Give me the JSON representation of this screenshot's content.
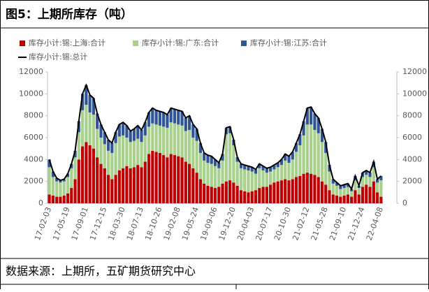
{
  "header": {
    "title": "图5：上期所库存（吨）"
  },
  "chart_data": {
    "type": "stacked-bar-line",
    "categories": [
      "17-02-03",
      null,
      null,
      null,
      null,
      "17-05-19",
      null,
      null,
      null,
      null,
      "17-09-01",
      null,
      null,
      null,
      null,
      "17-12-15",
      null,
      null,
      null,
      null,
      "18-03-30",
      null,
      null,
      null,
      null,
      "18-07-13",
      null,
      null,
      null,
      null,
      "18-10-26",
      null,
      null,
      null,
      null,
      "19-02-08",
      null,
      null,
      null,
      null,
      "19-05-24",
      null,
      null,
      null,
      null,
      "19-09-06",
      null,
      null,
      null,
      null,
      "19-12-20",
      null,
      null,
      null,
      null,
      "20-04-03",
      null,
      null,
      null,
      null,
      "20-07-17",
      null,
      null,
      null,
      null,
      "20-10-30",
      null,
      null,
      null,
      null,
      "21-02-12",
      null,
      null,
      null,
      null,
      "21-05-28",
      null,
      null,
      null,
      null,
      "21-09-10",
      null,
      null,
      null,
      null,
      "21-12-24",
      null,
      null,
      null,
      null,
      "22-04-08"
    ],
    "series": [
      {
        "name": "库存小计:锡:上海:合计",
        "color": "#c00000",
        "kind": "bar",
        "values": [
          800,
          700,
          600,
          600,
          700,
          900,
          1400,
          2200,
          4000,
          5200,
          5600,
          5300,
          5000,
          4200,
          3600,
          3200,
          2600,
          2200,
          2600,
          3000,
          3200,
          3400,
          3200,
          3300,
          3500,
          3300,
          3800,
          4500,
          4800,
          4700,
          4600,
          4400,
          4200,
          4500,
          4400,
          4300,
          4200,
          3800,
          3600,
          3200,
          2800,
          2200,
          1800,
          1600,
          1500,
          1400,
          1500,
          1800,
          2000,
          2100,
          1900,
          1600,
          1200,
          1100,
          1000,
          1100,
          1200,
          1400,
          1500,
          1500,
          1700,
          1900,
          2000,
          2100,
          2200,
          2100,
          2200,
          2400,
          2500,
          2700,
          2800,
          2700,
          2600,
          2400,
          2000,
          1700,
          1200,
          800,
          700,
          600,
          700,
          800,
          600,
          1200,
          800,
          1500,
          1700,
          1500,
          2000,
          1000,
          600
        ]
      },
      {
        "name": "库存小计:锡:广东:合计",
        "color": "#a9d18e",
        "kind": "bar",
        "values": [
          2500,
          1700,
          1400,
          1300,
          1300,
          1500,
          1800,
          2000,
          2500,
          3300,
          3400,
          3000,
          3100,
          2600,
          2400,
          2200,
          2200,
          2400,
          2900,
          3100,
          3000,
          2600,
          2400,
          2400,
          2400,
          2300,
          2400,
          2500,
          2500,
          2500,
          2500,
          2600,
          2700,
          2900,
          2900,
          2900,
          2900,
          2800,
          3100,
          2800,
          2900,
          2400,
          2100,
          2100,
          2100,
          2000,
          1700,
          2100,
          4300,
          4300,
          3400,
          2200,
          2000,
          2000,
          2000,
          1800,
          1500,
          1800,
          1500,
          1300,
          1200,
          1200,
          1300,
          1400,
          1700,
          1600,
          1800,
          2300,
          2800,
          3500,
          4400,
          4500,
          4100,
          4000,
          3600,
          2900,
          1700,
          1000,
          900,
          700,
          700,
          700,
          500,
          900,
          600,
          900,
          900,
          900,
          1300,
          900,
          1500
        ]
      },
      {
        "name": "库存小计:锡:江苏:合计",
        "color": "#2f5597",
        "kind": "bar",
        "values": [
          700,
          500,
          300,
          200,
          200,
          300,
          400,
          600,
          1000,
          1500,
          1800,
          1600,
          1500,
          1400,
          1200,
          1100,
          1000,
          900,
          1000,
          1100,
          1200,
          1100,
          1000,
          1100,
          1200,
          1100,
          1200,
          1300,
          1400,
          1300,
          1300,
          1300,
          1200,
          1300,
          1300,
          1300,
          1300,
          1200,
          1300,
          1200,
          1100,
          900,
          700,
          700,
          700,
          600,
          500,
          600,
          600,
          600,
          500,
          400,
          400,
          400,
          400,
          400,
          400,
          400,
          400,
          400,
          400,
          400,
          400,
          500,
          600,
          600,
          700,
          800,
          1000,
          1300,
          1500,
          1600,
          1500,
          1400,
          1200,
          1000,
          600,
          400,
          300,
          300,
          300,
          300,
          200,
          400,
          200,
          400,
          400,
          400,
          500,
          300,
          400
        ]
      },
      {
        "name": "库存小计:锡:总计",
        "color": "#000000",
        "kind": "line",
        "values": [
          4000,
          2900,
          2300,
          2100,
          2200,
          2700,
          3600,
          4800,
          7500,
          10000,
          10800,
          9900,
          9600,
          8200,
          7200,
          6500,
          5800,
          5500,
          6500,
          7200,
          7400,
          7100,
          6600,
          6800,
          7100,
          6700,
          7400,
          8300,
          8700,
          8500,
          8400,
          8300,
          8100,
          8700,
          8600,
          8500,
          8400,
          7800,
          8000,
          7200,
          6800,
          5500,
          4600,
          4400,
          4300,
          4000,
          3700,
          4500,
          6900,
          7000,
          5800,
          4200,
          3600,
          3500,
          3400,
          3300,
          3100,
          3600,
          3400,
          3200,
          3300,
          3500,
          3700,
          4000,
          4500,
          4300,
          4700,
          5500,
          6300,
          7500,
          8700,
          8800,
          8200,
          7800,
          6800,
          5600,
          3500,
          2200,
          1900,
          1600,
          1700,
          1800,
          1300,
          2500,
          1600,
          2800,
          3000,
          2800,
          3800,
          2200,
          2500
        ]
      }
    ],
    "ylim": [
      0,
      12000
    ],
    "yticks": [
      0,
      2000,
      4000,
      6000,
      8000,
      10000,
      12000
    ],
    "y2lim": [
      0,
      12000
    ],
    "y2ticks": [
      0,
      2000,
      4000,
      6000,
      8000,
      10000,
      12000
    ]
  },
  "footer": {
    "source": "数据来源：上期所，五矿期货研究中心"
  }
}
